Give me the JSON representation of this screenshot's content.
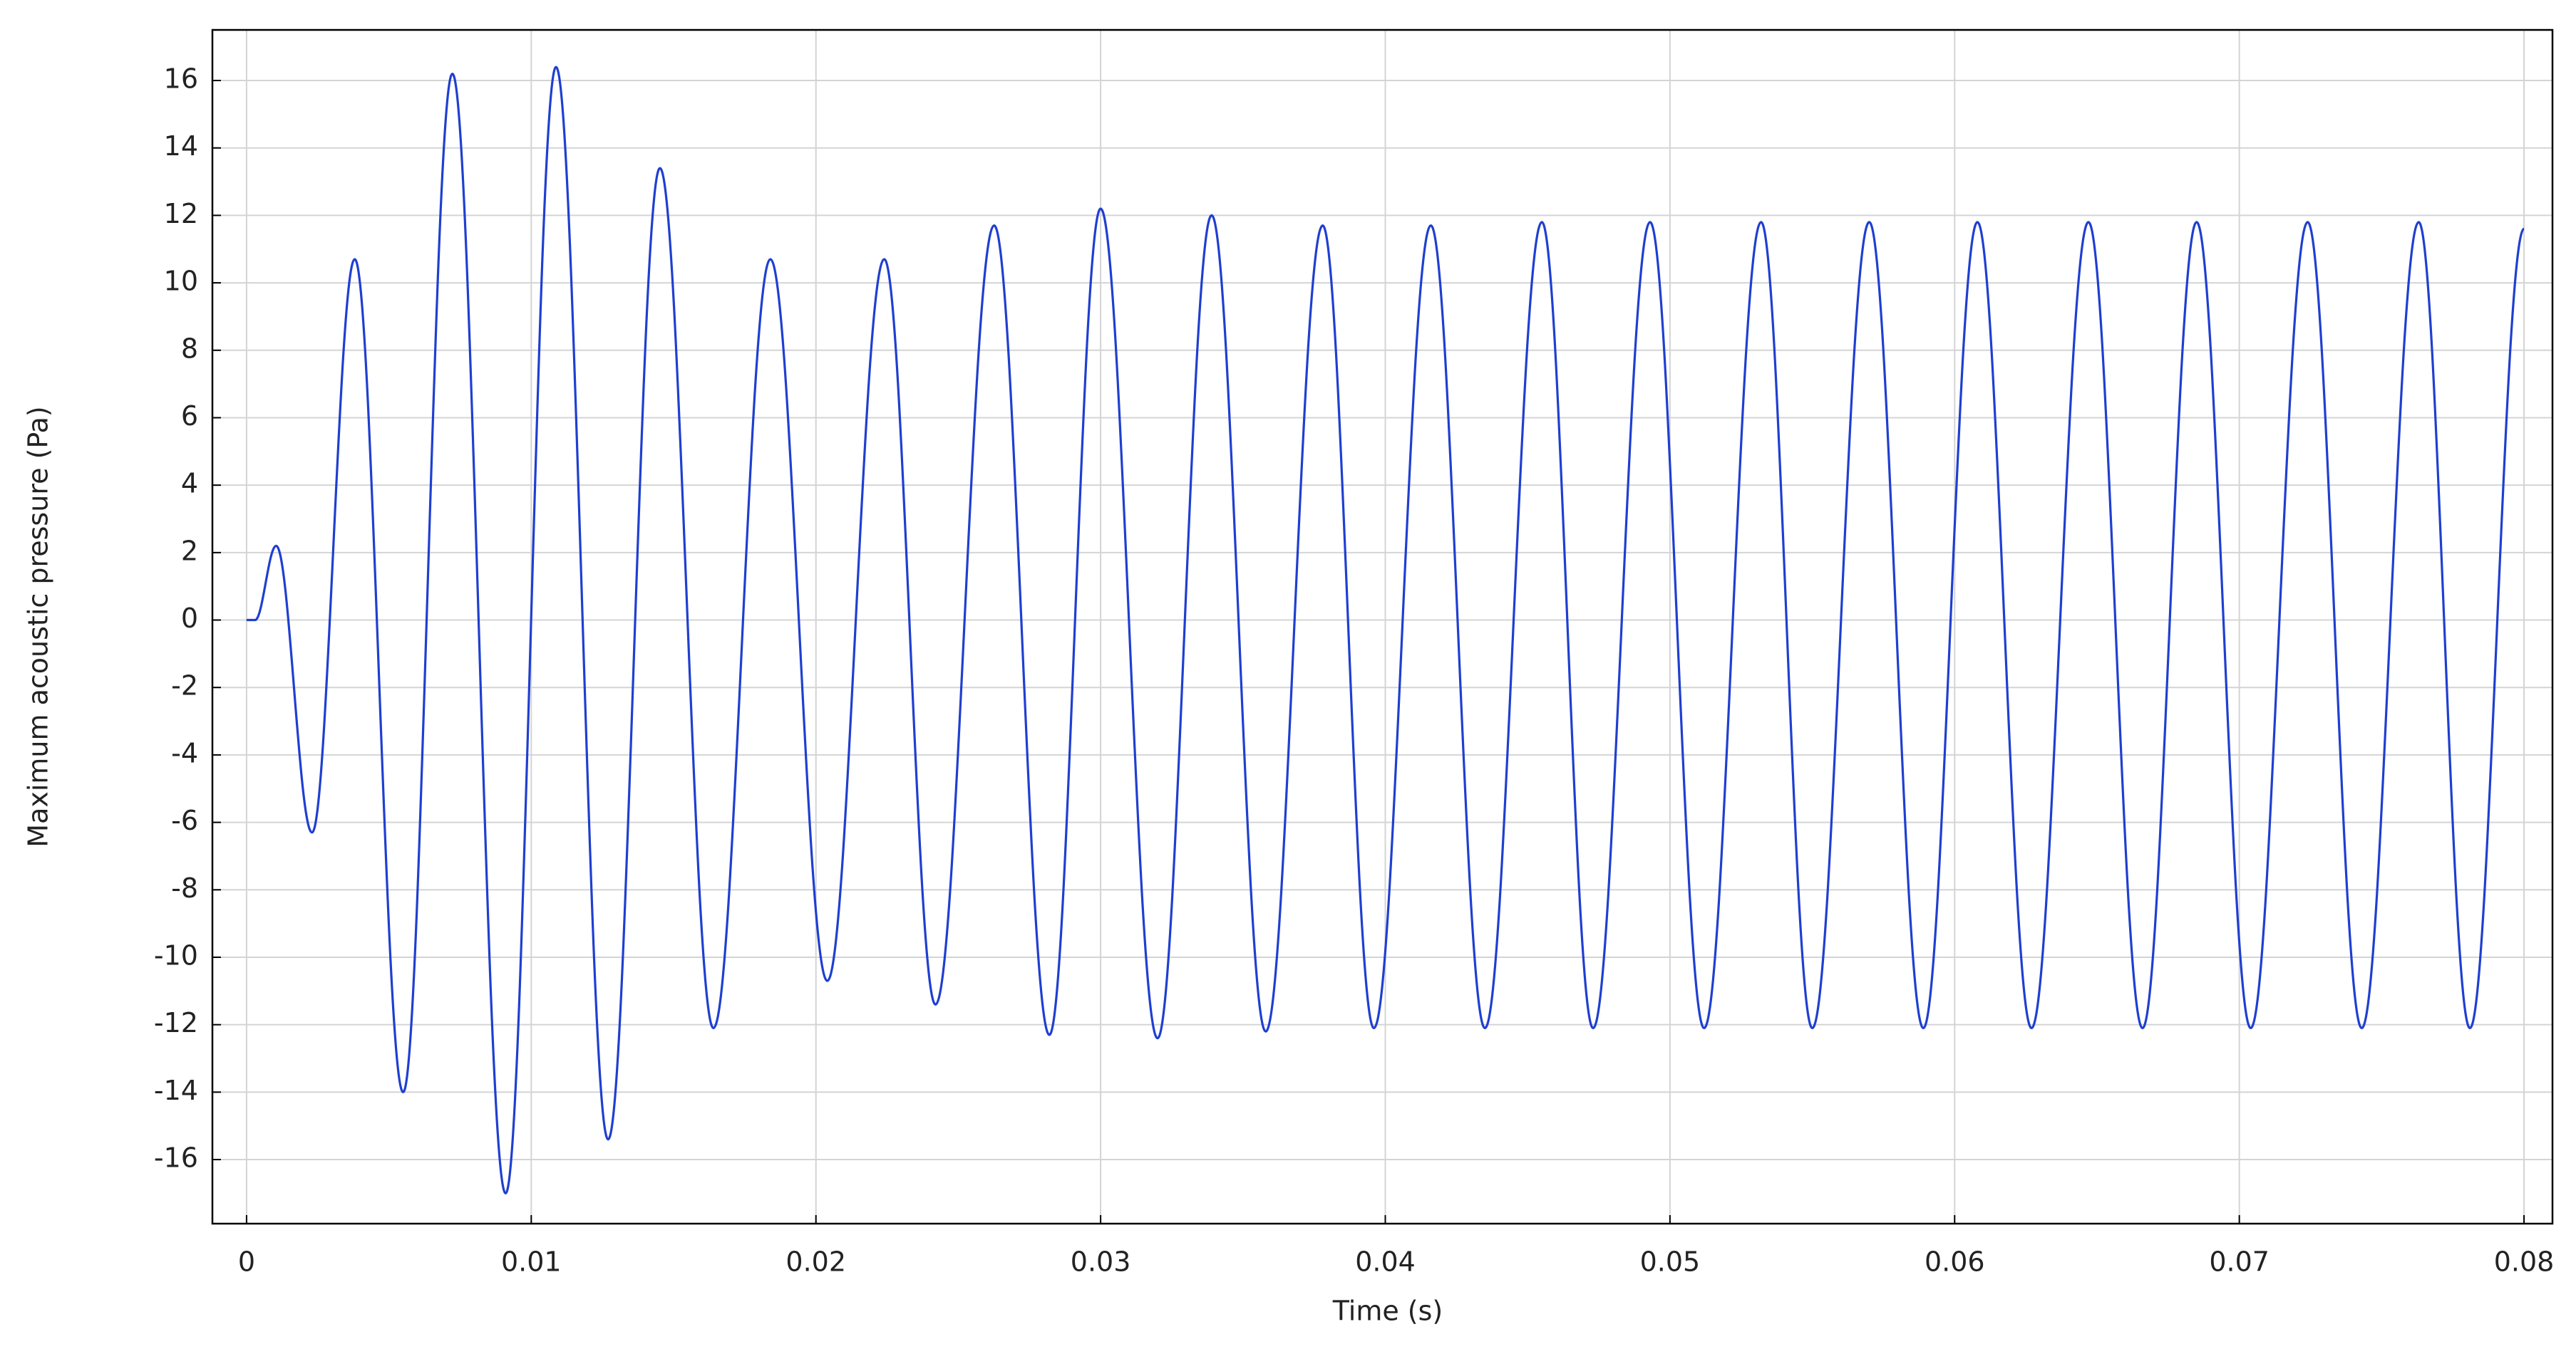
{
  "chart_data": {
    "type": "line",
    "x_label": "Time (s)",
    "y_label": "Maximum acoustic pressure (Pa)",
    "x": [
      0,
      0.0003,
      0.00104,
      0.0023,
      0.0038,
      0.0055,
      0.00723,
      0.0091,
      0.01087,
      0.0127,
      0.01452,
      0.0164,
      0.0184,
      0.0204,
      0.0224,
      0.0242,
      0.02626,
      0.0282,
      0.03,
      0.032,
      0.0339,
      0.0358,
      0.0378,
      0.0396,
      0.0416,
      0.0435,
      0.0455,
      0.0473,
      0.0493,
      0.0512,
      0.0532,
      0.055,
      0.057,
      0.0589,
      0.0608,
      0.0627,
      0.0647,
      0.0666,
      0.0685,
      0.0704,
      0.0724,
      0.0743,
      0.0763,
      0.0781,
      0.08
    ],
    "values": [
      0,
      0,
      2.2,
      -6.3,
      10.7,
      -14,
      16.2,
      -17,
      16.4,
      -15.4,
      13.4,
      -12.1,
      10.7,
      -10.7,
      10.7,
      -11.4,
      11.7,
      -12.3,
      12.2,
      -12.4,
      12,
      -12.2,
      11.7,
      -12.1,
      11.7,
      -12.1,
      11.8,
      -12.1,
      11.8,
      -12.1,
      11.8,
      -12.1,
      11.8,
      -12.1,
      11.8,
      -12.1,
      11.8,
      -12.1,
      11.8,
      -12.1,
      11.8,
      -12.1,
      11.8,
      -12.1,
      11.6
    ],
    "color": "#1f3fd0",
    "xlim": [
      -0.0012,
      0.081
    ],
    "ylim": [
      -17.9,
      17.5
    ],
    "xticks": [
      0,
      0.01,
      0.02,
      0.03,
      0.04,
      0.05,
      0.06,
      0.07,
      0.08
    ],
    "yticks": [
      -16,
      -14,
      -12,
      -10,
      -8,
      -6,
      -4,
      -2,
      0,
      2,
      4,
      6,
      8,
      10,
      12,
      14,
      16
    ],
    "grid": true
  }
}
